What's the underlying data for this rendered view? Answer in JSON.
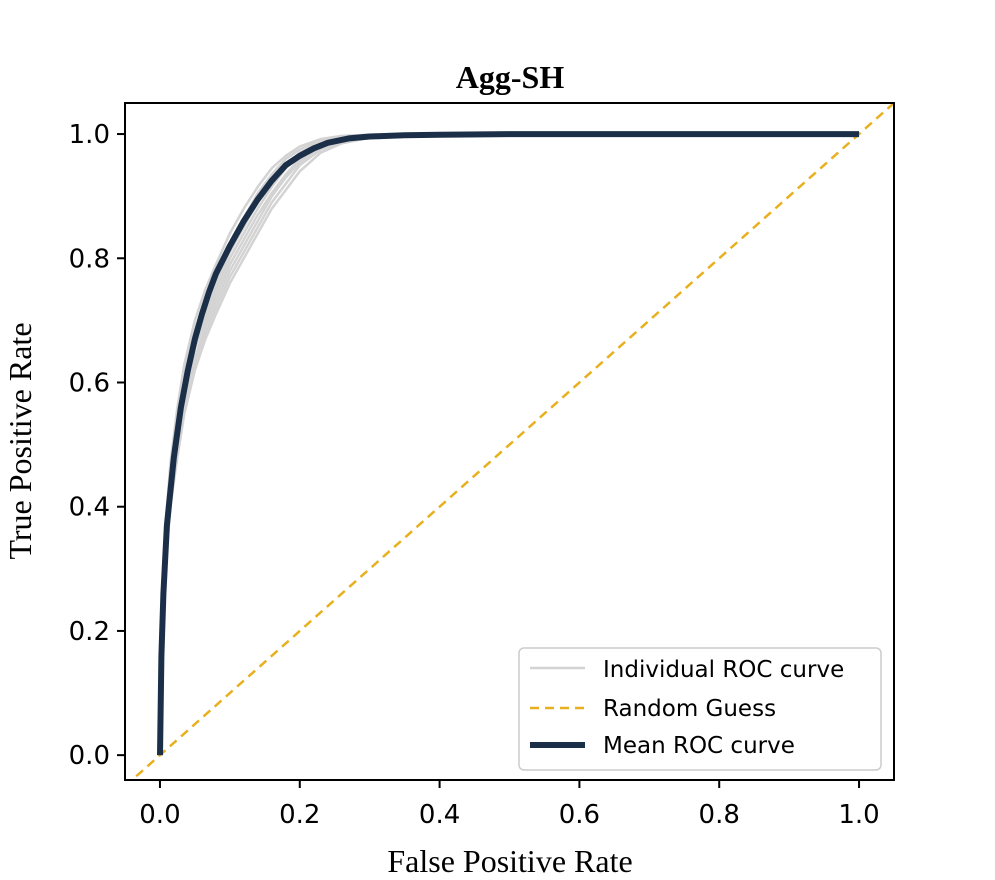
{
  "chart_data": {
    "type": "line",
    "title": "Agg-SH",
    "xlabel": "False Positive Rate",
    "ylabel": "True Positive Rate",
    "xlim": [
      -0.05,
      1.05
    ],
    "ylim": [
      -0.04,
      1.05
    ],
    "xticks": [
      0.0,
      0.2,
      0.4,
      0.6,
      0.8,
      1.0
    ],
    "yticks": [
      0.0,
      0.2,
      0.4,
      0.6,
      0.8,
      1.0
    ],
    "xtick_labels": [
      "0.0",
      "0.2",
      "0.4",
      "0.6",
      "0.8",
      "1.0"
    ],
    "ytick_labels": [
      "0.0",
      "0.2",
      "0.4",
      "0.6",
      "0.8",
      "1.0"
    ],
    "legend_position": "lower-right",
    "series": [
      {
        "name": "Individual ROC curve",
        "style": "solid",
        "color": "#d3d3d3",
        "curves": [
          {
            "x": [
              0,
              0.003,
              0.008,
              0.015,
              0.025,
              0.035,
              0.05,
              0.065,
              0.08,
              0.1,
              0.12,
              0.14,
              0.16,
              0.18,
              0.2,
              0.23,
              0.26,
              0.3,
              0.35,
              0.4,
              0.5,
              0.6,
              0.7,
              0.8,
              0.9,
              1.0
            ],
            "y": [
              0,
              0.2,
              0.35,
              0.45,
              0.53,
              0.6,
              0.67,
              0.72,
              0.76,
              0.81,
              0.85,
              0.89,
              0.925,
              0.95,
              0.97,
              0.985,
              0.993,
              0.997,
              0.999,
              1.0,
              1.0,
              1.0,
              1.0,
              1.0,
              1.0,
              1.0
            ]
          },
          {
            "x": [
              0,
              0.003,
              0.008,
              0.015,
              0.025,
              0.035,
              0.05,
              0.065,
              0.08,
              0.1,
              0.12,
              0.14,
              0.16,
              0.18,
              0.2,
              0.23,
              0.26,
              0.3,
              0.35,
              0.4,
              0.5,
              0.6,
              0.7,
              0.8,
              0.9,
              1.0
            ],
            "y": [
              0,
              0.17,
              0.32,
              0.42,
              0.5,
              0.57,
              0.64,
              0.69,
              0.73,
              0.78,
              0.82,
              0.86,
              0.9,
              0.93,
              0.955,
              0.98,
              0.99,
              0.996,
              0.999,
              1.0,
              1.0,
              1.0,
              1.0,
              1.0,
              1.0,
              1.0
            ]
          },
          {
            "x": [
              0,
              0.003,
              0.008,
              0.015,
              0.025,
              0.035,
              0.05,
              0.065,
              0.08,
              0.1,
              0.12,
              0.14,
              0.16,
              0.18,
              0.2,
              0.23,
              0.26,
              0.3,
              0.35,
              0.4,
              0.5,
              0.6,
              0.7,
              0.8,
              0.9,
              1.0
            ],
            "y": [
              0,
              0.22,
              0.37,
              0.47,
              0.56,
              0.63,
              0.7,
              0.75,
              0.79,
              0.84,
              0.88,
              0.915,
              0.945,
              0.965,
              0.98,
              0.992,
              0.997,
              0.999,
              1.0,
              1.0,
              1.0,
              1.0,
              1.0,
              1.0,
              1.0,
              1.0
            ]
          },
          {
            "x": [
              0,
              0.003,
              0.008,
              0.015,
              0.025,
              0.035,
              0.05,
              0.065,
              0.08,
              0.1,
              0.12,
              0.14,
              0.16,
              0.18,
              0.2,
              0.23,
              0.26,
              0.3,
              0.35,
              0.4,
              0.5,
              0.6,
              0.7,
              0.8,
              0.9,
              1.0
            ],
            "y": [
              0,
              0.15,
              0.3,
              0.4,
              0.48,
              0.55,
              0.62,
              0.67,
              0.71,
              0.76,
              0.8,
              0.84,
              0.88,
              0.91,
              0.94,
              0.97,
              0.985,
              0.994,
              0.998,
              1.0,
              1.0,
              1.0,
              1.0,
              1.0,
              1.0,
              1.0
            ]
          },
          {
            "x": [
              0,
              0.003,
              0.008,
              0.015,
              0.025,
              0.035,
              0.05,
              0.065,
              0.08,
              0.1,
              0.12,
              0.14,
              0.16,
              0.18,
              0.2,
              0.23,
              0.26,
              0.3,
              0.35,
              0.4,
              0.5,
              0.6,
              0.7,
              0.8,
              0.9,
              1.0
            ],
            "y": [
              0,
              0.19,
              0.34,
              0.44,
              0.52,
              0.59,
              0.66,
              0.71,
              0.75,
              0.8,
              0.84,
              0.88,
              0.915,
              0.945,
              0.965,
              0.984,
              0.993,
              0.997,
              0.999,
              1.0,
              1.0,
              1.0,
              1.0,
              1.0,
              1.0,
              1.0
            ]
          },
          {
            "x": [
              0,
              0.003,
              0.008,
              0.015,
              0.025,
              0.035,
              0.05,
              0.065,
              0.08,
              0.1,
              0.12,
              0.14,
              0.16,
              0.18,
              0.2,
              0.23,
              0.26,
              0.3,
              0.35,
              0.4,
              0.5,
              0.6,
              0.7,
              0.8,
              0.9,
              1.0
            ],
            "y": [
              0,
              0.21,
              0.36,
              0.46,
              0.545,
              0.615,
              0.685,
              0.735,
              0.775,
              0.825,
              0.865,
              0.905,
              0.935,
              0.96,
              0.975,
              0.99,
              0.996,
              0.999,
              1.0,
              1.0,
              1.0,
              1.0,
              1.0,
              1.0,
              1.0,
              1.0
            ]
          },
          {
            "x": [
              0,
              0.003,
              0.008,
              0.015,
              0.025,
              0.035,
              0.05,
              0.065,
              0.08,
              0.1,
              0.12,
              0.14,
              0.16,
              0.18,
              0.2,
              0.23,
              0.26,
              0.3,
              0.35,
              0.4,
              0.5,
              0.6,
              0.7,
              0.8,
              0.9,
              1.0
            ],
            "y": [
              0,
              0.16,
              0.31,
              0.41,
              0.49,
              0.56,
              0.63,
              0.68,
              0.72,
              0.77,
              0.81,
              0.85,
              0.89,
              0.92,
              0.95,
              0.975,
              0.988,
              0.995,
              0.998,
              1.0,
              1.0,
              1.0,
              1.0,
              1.0,
              1.0,
              1.0
            ]
          },
          {
            "x": [
              0,
              0.003,
              0.008,
              0.015,
              0.025,
              0.035,
              0.05,
              0.065,
              0.08,
              0.1,
              0.12,
              0.14,
              0.16,
              0.18,
              0.2,
              0.23,
              0.26,
              0.3,
              0.35,
              0.4,
              0.5,
              0.6,
              0.7,
              0.8,
              0.9,
              1.0
            ],
            "y": [
              0,
              0.18,
              0.33,
              0.43,
              0.51,
              0.58,
              0.655,
              0.7,
              0.74,
              0.79,
              0.83,
              0.87,
              0.905,
              0.935,
              0.96,
              0.982,
              0.992,
              0.997,
              0.999,
              1.0,
              1.0,
              1.0,
              1.0,
              1.0,
              1.0,
              1.0
            ]
          }
        ]
      },
      {
        "name": "Random Guess",
        "style": "dashed",
        "color": "#e8b01e",
        "x": [
          -0.05,
          1.05
        ],
        "y": [
          -0.05,
          1.05
        ]
      },
      {
        "name": "Mean ROC curve",
        "style": "solid",
        "color": "#1b3048",
        "x": [
          0,
          0.002,
          0.005,
          0.01,
          0.02,
          0.03,
          0.04,
          0.05,
          0.06,
          0.07,
          0.08,
          0.1,
          0.12,
          0.14,
          0.16,
          0.18,
          0.2,
          0.22,
          0.24,
          0.27,
          0.3,
          0.35,
          0.4,
          0.5,
          0.6,
          0.7,
          0.8,
          0.9,
          1.0
        ],
        "y": [
          0,
          0.16,
          0.26,
          0.37,
          0.48,
          0.56,
          0.62,
          0.67,
          0.71,
          0.745,
          0.775,
          0.82,
          0.86,
          0.895,
          0.925,
          0.95,
          0.965,
          0.977,
          0.986,
          0.993,
          0.996,
          0.998,
          0.999,
          1.0,
          1.0,
          1.0,
          1.0,
          1.0,
          1.0
        ]
      }
    ]
  },
  "colors": {
    "individual": "#d3d3d3",
    "random": "#e8b01e",
    "mean": "#1b3048",
    "axes": "#000000"
  }
}
